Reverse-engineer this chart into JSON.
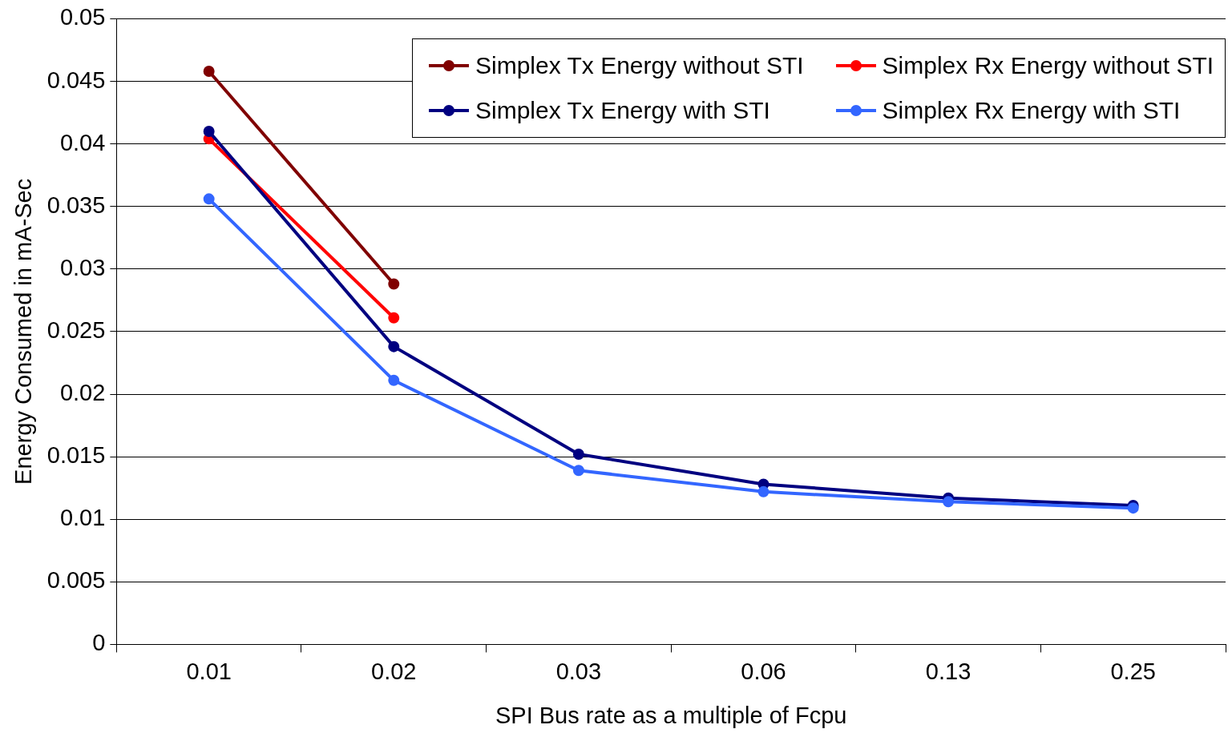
{
  "chart_data": {
    "type": "line",
    "xlabel": "SPI Bus rate as a multiple of Fcpu",
    "ylabel": "Energy Consumed in mA-Sec",
    "categories": [
      "0.01",
      "0.02",
      "0.03",
      "0.06",
      "0.13",
      "0.25"
    ],
    "series": [
      {
        "name": "Simplex Tx Energy without STI",
        "color": "#800000",
        "values": [
          0.0458,
          0.0288,
          null,
          null,
          null,
          null
        ]
      },
      {
        "name": "Simplex Rx Energy without STI",
        "color": "#ff0000",
        "values": [
          0.0404,
          0.0261,
          null,
          null,
          null,
          null
        ]
      },
      {
        "name": "Simplex Tx Energy with STI",
        "color": "#000080",
        "values": [
          0.041,
          0.0238,
          0.0152,
          0.0128,
          0.0117,
          0.0111
        ]
      },
      {
        "name": "Simplex Rx Energy with STI",
        "color": "#3366ff",
        "values": [
          0.0356,
          0.0211,
          0.0139,
          0.0122,
          0.0114,
          0.0109
        ]
      }
    ],
    "ylim": [
      0,
      0.05
    ],
    "yticks": [
      0,
      0.005,
      0.01,
      0.015,
      0.02,
      0.025,
      0.03,
      0.035,
      0.04,
      0.045,
      0.05
    ],
    "grid": "y",
    "legend": "top right",
    "marker": "circle",
    "line_style": "solid"
  }
}
